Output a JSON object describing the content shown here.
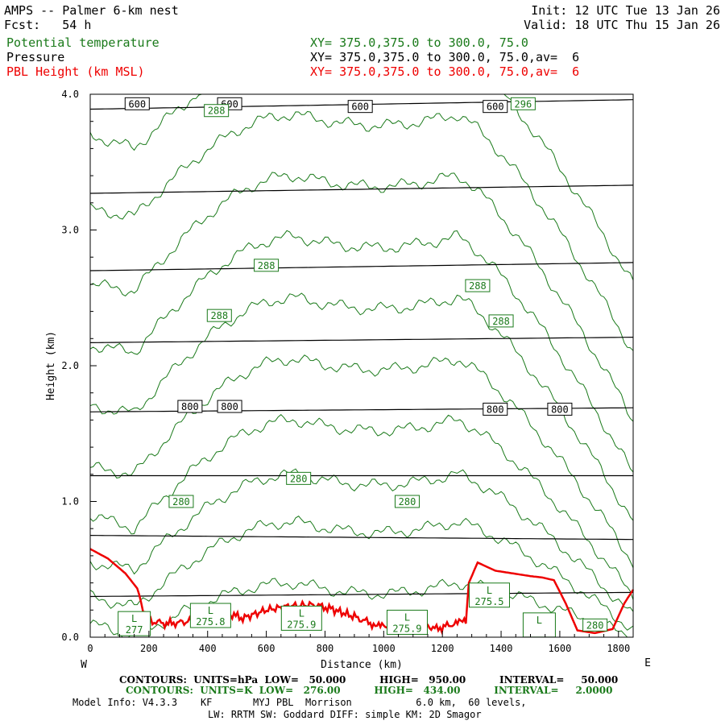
{
  "header": {
    "line1_left": "AMPS -- Palmer 6-km nest",
    "line1_right": "Init: 12 UTC Tue 13 Jan 26",
    "line2_left": "Fcst:   54 h",
    "line2_right": "Valid: 18 UTC Thu 15 Jan 26",
    "field1_name": "Potential temperature",
    "field1_xy": "XY= 375.0,375.0 to 300.0, 75.0",
    "field2_name": "Pressure",
    "field2_xy": "XY= 375.0,375.0 to 300.0, 75.0,av=  6",
    "field3_name": "PBL Height (km MSL)",
    "field3_xy": "XY= 375.0,375.0 to 300.0, 75.0,av=  6"
  },
  "colors": {
    "theta": "#1a7a1a",
    "pressure": "#000000",
    "pbl": "#ee0000"
  },
  "chart_data": {
    "type": "line",
    "xlabel": "Distance (km)",
    "ylabel": "Height (km)",
    "xlim": [
      0,
      1850
    ],
    "ylim": [
      0,
      4
    ],
    "x_ticks": [
      "0",
      "200",
      "400",
      "600",
      "800",
      "1000",
      "1200",
      "1400",
      "1600",
      "1800"
    ],
    "y_ticks": [
      "0.0",
      "1.0",
      "2.0",
      "3.0",
      "4.0"
    ],
    "west_label": "W",
    "east_label": "E",
    "pressure_contours": [
      {
        "y0": 0.3,
        "y1": 0.33
      },
      {
        "y0": 0.75,
        "y1": 0.72
      },
      {
        "y0": 1.19,
        "y1": 1.19
      },
      {
        "y0": 1.66,
        "y1": 1.69
      },
      {
        "y0": 2.17,
        "y1": 2.21
      },
      {
        "y0": 2.7,
        "y1": 2.76
      },
      {
        "y0": 3.27,
        "y1": 3.33
      },
      {
        "y0": 3.89,
        "y1": 3.96
      }
    ],
    "theta_contours": [
      {
        "base": 0.0,
        "peak": 0.4,
        "left": 0.1,
        "right": 0.0
      },
      {
        "base": 0.22,
        "peak": 0.85,
        "left": 0.3,
        "right": 0.05
      },
      {
        "base": 0.5,
        "peak": 1.2,
        "left": 0.55,
        "right": 0.15
      },
      {
        "base": 0.8,
        "peak": 1.6,
        "left": 0.9,
        "right": 0.3
      },
      {
        "base": 1.2,
        "peak": 2.05,
        "left": 1.25,
        "right": 0.55
      },
      {
        "base": 1.65,
        "peak": 2.5,
        "left": 1.7,
        "right": 0.85
      },
      {
        "base": 2.1,
        "peak": 2.95,
        "left": 2.15,
        "right": 1.2
      },
      {
        "base": 2.55,
        "peak": 3.4,
        "left": 2.6,
        "right": 1.6
      },
      {
        "base": 3.1,
        "peak": 3.85,
        "left": 3.15,
        "right": 2.1
      },
      {
        "base": 3.6,
        "peak": 4.3,
        "left": 3.7,
        "right": 2.6
      }
    ],
    "pbl_height": {
      "x": [
        0,
        60,
        120,
        160,
        180,
        200,
        260,
        320,
        400,
        460,
        520,
        600,
        680,
        760,
        820,
        900,
        960,
        1000,
        1060,
        1120,
        1180,
        1240,
        1280,
        1290,
        1320,
        1380,
        1440,
        1500,
        1540,
        1580,
        1620,
        1660,
        1720,
        1780,
        1820,
        1850
      ],
      "y": [
        0.65,
        0.58,
        0.47,
        0.36,
        0.2,
        0.12,
        0.1,
        0.11,
        0.15,
        0.18,
        0.14,
        0.2,
        0.23,
        0.24,
        0.21,
        0.15,
        0.1,
        0.07,
        0.09,
        0.11,
        0.06,
        0.1,
        0.11,
        0.4,
        0.55,
        0.49,
        0.47,
        0.45,
        0.44,
        0.42,
        0.25,
        0.05,
        0.03,
        0.06,
        0.25,
        0.35
      ]
    },
    "pressure_labels": [
      {
        "text": "600",
        "x": 160,
        "y": 3.93
      },
      {
        "text": "600",
        "x": 475,
        "y": 3.93
      },
      {
        "text": "600",
        "x": 920,
        "y": 3.91
      },
      {
        "text": "600",
        "x": 1380,
        "y": 3.91
      },
      {
        "text": "800",
        "x": 340,
        "y": 1.7
      },
      {
        "text": "800",
        "x": 475,
        "y": 1.7
      },
      {
        "text": "800",
        "x": 1380,
        "y": 1.68
      },
      {
        "text": "800",
        "x": 1600,
        "y": 1.68
      }
    ],
    "theta_labels": [
      {
        "text": "288",
        "x": 430,
        "y": 3.88
      },
      {
        "text": "296",
        "x": 1475,
        "y": 3.93
      },
      {
        "text": "288",
        "x": 600,
        "y": 2.74
      },
      {
        "text": "288",
        "x": 440,
        "y": 2.37
      },
      {
        "text": "288",
        "x": 1320,
        "y": 2.59
      },
      {
        "text": "288",
        "x": 1400,
        "y": 2.33
      },
      {
        "text": "280",
        "x": 310,
        "y": 1.0
      },
      {
        "text": "280",
        "x": 710,
        "y": 1.17
      },
      {
        "text": "280",
        "x": 1080,
        "y": 1.0
      },
      {
        "text": "280",
        "x": 1720,
        "y": 0.09
      }
    ],
    "low_markers": [
      {
        "text": "L",
        "value": "277",
        "x": 150,
        "y": 0.1
      },
      {
        "text": "L",
        "value": "275.8",
        "x": 410,
        "y": 0.16
      },
      {
        "text": "L",
        "value": "275.9",
        "x": 720,
        "y": 0.14
      },
      {
        "text": "L",
        "value": "275.9",
        "x": 1080,
        "y": 0.11
      },
      {
        "text": "L",
        "value": "275.5",
        "x": 1360,
        "y": 0.31
      },
      {
        "text": "L",
        "value": "",
        "x": 1530,
        "y": 0.09
      }
    ]
  },
  "footer": {
    "contours1": "CONTOURS:  UNITS=hPa  LOW=   50.000          HIGH=   950.00          INTERVAL=     50.000",
    "contours2": "CONTOURS:  UNITS=K  LOW=   276.00          HIGH=   434.00          INTERVAL=     2.0000",
    "model_info": "Model Info: V4.3.3    KF       MYJ PBL  Morrison           6.0 km,  60 levels,",
    "physics": "LW: RRTM SW: Goddard DIFF: simple KM: 2D Smagor"
  }
}
